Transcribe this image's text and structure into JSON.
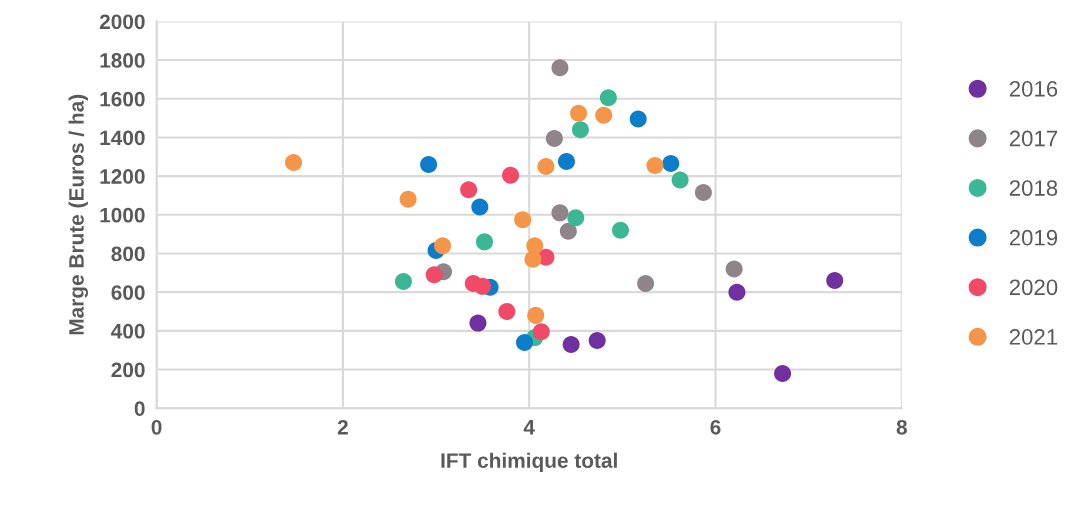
{
  "chart_data": {
    "type": "scatter",
    "xlabel": "IFT chimique total",
    "ylabel": "Marge Brute (Euros / ha)",
    "xlim": [
      0,
      8
    ],
    "xticks": [
      0,
      2,
      4,
      6,
      8
    ],
    "ylim": [
      0,
      2000
    ],
    "yticks": [
      0,
      200,
      400,
      600,
      800,
      1000,
      1200,
      1400,
      1600,
      1800,
      2000
    ],
    "grid": true,
    "legend": "right",
    "marker": "circle",
    "series": [
      {
        "name": "2016",
        "color": "#7030a0",
        "x": [
          3.45,
          4.45,
          4.73,
          6.23,
          6.72,
          7.28
        ],
        "values": [
          440,
          330,
          350,
          600,
          180,
          660
        ]
      },
      {
        "name": "2017",
        "color": "#8f8489",
        "x": [
          4.33,
          4.27,
          4.33,
          4.42,
          3.08,
          5.25,
          5.87,
          6.2
        ],
        "values": [
          1760,
          1395,
          1010,
          915,
          705,
          645,
          1115,
          720
        ]
      },
      {
        "name": "2018",
        "color": "#3cb796",
        "x": [
          4.85,
          4.55,
          5.62,
          4.5,
          4.98,
          3.52,
          2.65,
          4.06
        ],
        "values": [
          1605,
          1440,
          1180,
          985,
          920,
          860,
          655,
          365
        ]
      },
      {
        "name": "2019",
        "color": "#0b7dcb",
        "x": [
          2.92,
          3.47,
          3.0,
          3.58,
          3.95,
          4.4,
          5.17,
          5.52
        ],
        "values": [
          1260,
          1040,
          815,
          625,
          340,
          1275,
          1495,
          1265
        ]
      },
      {
        "name": "2020",
        "color": "#f04a68",
        "x": [
          3.35,
          3.8,
          2.98,
          3.4,
          3.5,
          3.76,
          4.13,
          4.18
        ],
        "values": [
          1130,
          1205,
          690,
          645,
          630,
          500,
          395,
          780
        ]
      },
      {
        "name": "2021",
        "color": "#f5954a",
        "x": [
          1.47,
          2.7,
          3.07,
          3.93,
          4.18,
          4.06,
          4.04,
          4.07,
          4.53,
          4.8,
          5.35
        ],
        "values": [
          1270,
          1080,
          840,
          975,
          1250,
          840,
          770,
          480,
          1525,
          1515,
          1255
        ]
      }
    ]
  }
}
